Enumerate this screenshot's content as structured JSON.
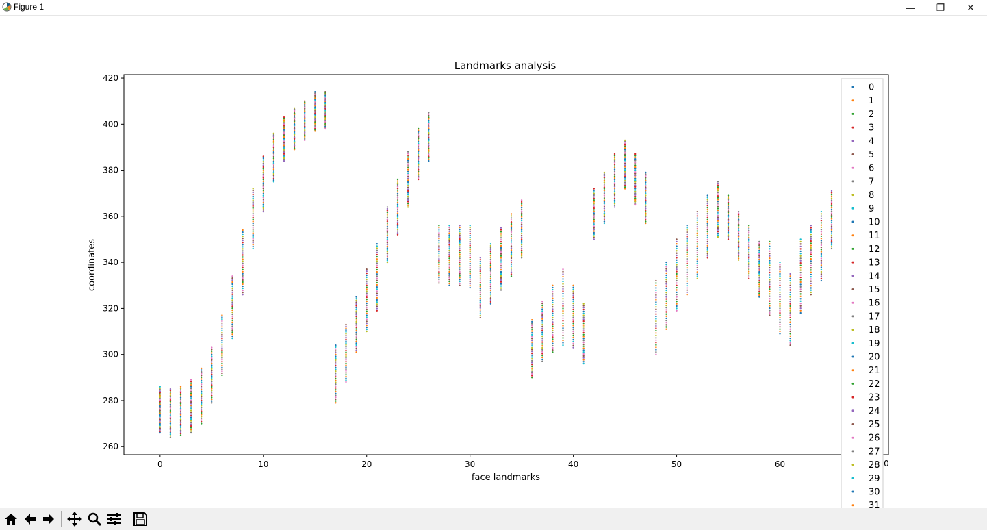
{
  "window": {
    "title": "Figure 1",
    "minimize_glyph": "—",
    "maximize_glyph": "❐",
    "close_glyph": "✕",
    "icon": "matplotlib-icon"
  },
  "toolbar": {
    "buttons": [
      {
        "icon": "home-icon"
      },
      {
        "icon": "back-arrow-icon"
      },
      {
        "icon": "forward-arrow-icon"
      },
      {
        "icon": "pan-icon"
      },
      {
        "icon": "zoom-icon"
      },
      {
        "icon": "configure-subplots-icon"
      },
      {
        "icon": "save-icon"
      }
    ]
  },
  "chart_data": {
    "type": "scatter",
    "title": "Landmarks analysis",
    "xlabel": "face landmarks",
    "ylabel": "coordinates",
    "xlim": [
      -3.5,
      70.5
    ],
    "ylim": [
      256.5,
      421.5
    ],
    "x_ticks": [
      0,
      10,
      20,
      30,
      40,
      50,
      60
    ],
    "x_tick_labels": [
      "0",
      "10",
      "20",
      "30",
      "40",
      "50",
      "60"
    ],
    "y_ticks": [
      260,
      280,
      300,
      320,
      340,
      360,
      380,
      400,
      420
    ],
    "y_tick_labels": [
      "260",
      "280",
      "300",
      "320",
      "340",
      "360",
      "380",
      "400",
      "420"
    ],
    "x_tick_partial_label": "0",
    "grid": false,
    "legend_position": "right, extending below the figure",
    "series_names": [
      "0",
      "1",
      "2",
      "3",
      "4",
      "5",
      "6",
      "7",
      "8",
      "9",
      "10",
      "11",
      "12",
      "13",
      "14",
      "15",
      "16",
      "17",
      "18",
      "19",
      "20",
      "21",
      "22",
      "23",
      "24",
      "25",
      "26",
      "27",
      "28",
      "29",
      "30",
      "31"
    ],
    "series_colors": [
      "#1f77b4",
      "#ff7f0e",
      "#2ca02c",
      "#d62728",
      "#9467bd",
      "#8c564b",
      "#e377c2",
      "#7f7f7f",
      "#bcbd22",
      "#17becf"
    ],
    "landmark_y_ranges": [
      [
        266,
        286
      ],
      [
        264,
        285
      ],
      [
        265,
        286
      ],
      [
        266,
        289
      ],
      [
        270,
        294
      ],
      [
        279,
        303
      ],
      [
        291,
        317
      ],
      [
        307,
        334
      ],
      [
        326,
        354
      ],
      [
        346,
        372
      ],
      [
        362,
        386
      ],
      [
        375,
        396
      ],
      [
        384,
        403
      ],
      [
        389,
        407
      ],
      [
        393,
        410
      ],
      [
        397,
        414
      ],
      [
        398,
        414
      ],
      [
        279,
        304
      ],
      [
        288,
        313
      ],
      [
        301,
        325
      ],
      [
        310,
        337
      ],
      [
        319,
        348
      ],
      [
        340,
        364
      ],
      [
        352,
        376
      ],
      [
        364,
        388
      ],
      [
        376,
        398
      ],
      [
        384,
        405
      ],
      [
        331,
        356
      ],
      [
        330,
        356
      ],
      [
        330,
        356
      ],
      [
        329,
        356
      ],
      [
        316,
        342
      ],
      [
        322,
        348
      ],
      [
        328,
        355
      ],
      [
        334,
        361
      ],
      [
        342,
        367
      ],
      [
        290,
        315
      ],
      [
        297,
        323
      ],
      [
        301,
        330
      ],
      [
        304,
        337
      ],
      [
        303,
        330
      ],
      [
        296,
        322
      ],
      [
        350,
        372
      ],
      [
        357,
        379
      ],
      [
        364,
        387
      ],
      [
        372,
        393
      ],
      [
        365,
        387
      ],
      [
        357,
        379
      ],
      [
        300,
        332
      ],
      [
        311,
        340
      ],
      [
        319,
        350
      ],
      [
        326,
        356
      ],
      [
        333,
        362
      ],
      [
        342,
        369
      ],
      [
        351,
        375
      ],
      [
        350,
        369
      ],
      [
        341,
        362
      ],
      [
        333,
        356
      ],
      [
        325,
        349
      ],
      [
        317,
        349
      ],
      [
        309,
        340
      ],
      [
        304,
        335
      ],
      [
        318,
        350
      ],
      [
        326,
        356
      ],
      [
        332,
        362
      ],
      [
        346,
        371
      ],
      [
        332,
        362
      ]
    ],
    "num_points_per_landmark": 32
  }
}
